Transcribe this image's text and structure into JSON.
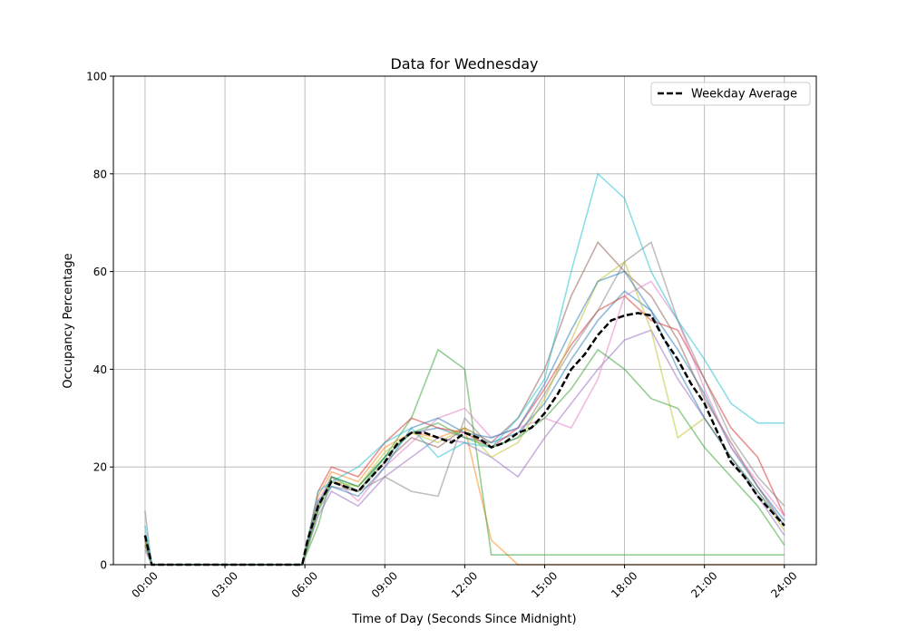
{
  "chart_data": {
    "type": "line",
    "title": "Data for Wednesday",
    "xlabel": "Time of Day (Seconds Since Midnight)",
    "ylabel": "Occupancy Percentage",
    "xlim": [
      -1.19,
      25.2
    ],
    "ylim": [
      0,
      100
    ],
    "grid": true,
    "legend": "top-right",
    "x_ticks": [
      0,
      3,
      6,
      9,
      12,
      15,
      18,
      21,
      24
    ],
    "x_tick_labels": [
      "00:00",
      "03:00",
      "06:00",
      "09:00",
      "12:00",
      "15:00",
      "18:00",
      "21:00",
      "24:00"
    ],
    "y_ticks": [
      0,
      20,
      40,
      60,
      80,
      100
    ],
    "y_tick_labels": [
      "0",
      "20",
      "40",
      "60",
      "80",
      "100"
    ],
    "series_x_hours": [
      0,
      0.25,
      5.9,
      6.5,
      7,
      8,
      9,
      10,
      11,
      12,
      13,
      14,
      15,
      16,
      17,
      18,
      19,
      20,
      21,
      22,
      23,
      24
    ],
    "series": [
      {
        "color": "#1f77b4",
        "values": [
          6,
          0,
          0,
          12,
          18,
          16,
          22,
          27,
          28,
          26,
          25,
          27,
          33,
          42,
          50,
          56,
          52,
          44,
          35,
          24,
          16,
          9
        ]
      },
      {
        "color": "#ff7f0e",
        "values": [
          4,
          0,
          0,
          14,
          19,
          17,
          24,
          27,
          26,
          28,
          5,
          0,
          0,
          0,
          0,
          0,
          0,
          0,
          0,
          0,
          0,
          0
        ]
      },
      {
        "color": "#2ca02c",
        "values": [
          5,
          0,
          0,
          8,
          18,
          15,
          22,
          30,
          44,
          40,
          2,
          2,
          2,
          2,
          2,
          2,
          2,
          2,
          2,
          2,
          2,
          2
        ]
      },
      {
        "color": "#d62728",
        "values": [
          5,
          0,
          0,
          15,
          20,
          18,
          25,
          30,
          28,
          27,
          24,
          28,
          36,
          45,
          52,
          55,
          50,
          48,
          38,
          28,
          22,
          10
        ]
      },
      {
        "color": "#9467bd",
        "values": [
          3,
          0,
          0,
          10,
          15,
          12,
          18,
          22,
          26,
          25,
          22,
          18,
          26,
          33,
          40,
          46,
          48,
          38,
          30,
          22,
          14,
          6
        ]
      },
      {
        "color": "#8c564b",
        "values": [
          5,
          0,
          0,
          12,
          17,
          15,
          21,
          26,
          24,
          28,
          25,
          30,
          40,
          55,
          66,
          60,
          55,
          46,
          34,
          25,
          16,
          8
        ]
      },
      {
        "color": "#e377c2",
        "values": [
          4,
          0,
          0,
          13,
          18,
          13,
          20,
          25,
          30,
          32,
          26,
          28,
          30,
          28,
          38,
          55,
          58,
          50,
          36,
          24,
          17,
          10
        ]
      },
      {
        "color": "#7f7f7f",
        "values": [
          11,
          0,
          0,
          11,
          16,
          15,
          18,
          15,
          14,
          30,
          24,
          26,
          35,
          44,
          52,
          62,
          66,
          50,
          38,
          26,
          18,
          12
        ]
      },
      {
        "color": "#bcbd22",
        "values": [
          5,
          0,
          0,
          12,
          17,
          16,
          23,
          27,
          25,
          28,
          22,
          25,
          34,
          46,
          58,
          62,
          48,
          26,
          30,
          22,
          15,
          7
        ]
      },
      {
        "color": "#17becf",
        "values": [
          8,
          0,
          0,
          15,
          17,
          20,
          25,
          28,
          22,
          25,
          24,
          30,
          38,
          60,
          80,
          75,
          60,
          50,
          42,
          33,
          29,
          29
        ]
      },
      {
        "color": "#1f77b4",
        "values": [
          6,
          0,
          0,
          13,
          16,
          14,
          20,
          28,
          30,
          27,
          26,
          28,
          37,
          48,
          58,
          60,
          52,
          40,
          30,
          22,
          15,
          8
        ]
      },
      {
        "color": "#2ca02c",
        "values": [
          4,
          0,
          0,
          11,
          18,
          16,
          22,
          27,
          29,
          26,
          24,
          26,
          30,
          36,
          44,
          40,
          34,
          32,
          24,
          18,
          12,
          4
        ]
      }
    ],
    "average": {
      "name": "Weekday Average",
      "color": "#000000",
      "x_hours": [
        0,
        0.25,
        5.9,
        6.1,
        6.5,
        7,
        7.5,
        8,
        8.5,
        9,
        9.5,
        10,
        10.5,
        11,
        11.5,
        12,
        12.5,
        13,
        13.5,
        14,
        14.5,
        15,
        15.5,
        16,
        16.5,
        17,
        17.5,
        18,
        18.5,
        19,
        19.5,
        20,
        20.5,
        21,
        21.5,
        22,
        22.5,
        23,
        23.5,
        24
      ],
      "values": [
        6,
        0,
        0,
        5,
        12,
        17,
        16,
        15,
        18,
        21,
        25,
        27,
        27,
        26,
        25,
        27,
        26,
        24,
        25,
        27,
        28,
        31,
        35,
        40,
        43,
        47,
        50,
        51,
        51.5,
        51,
        46,
        42,
        37,
        33,
        27,
        21,
        18,
        14,
        11,
        8
      ]
    }
  }
}
